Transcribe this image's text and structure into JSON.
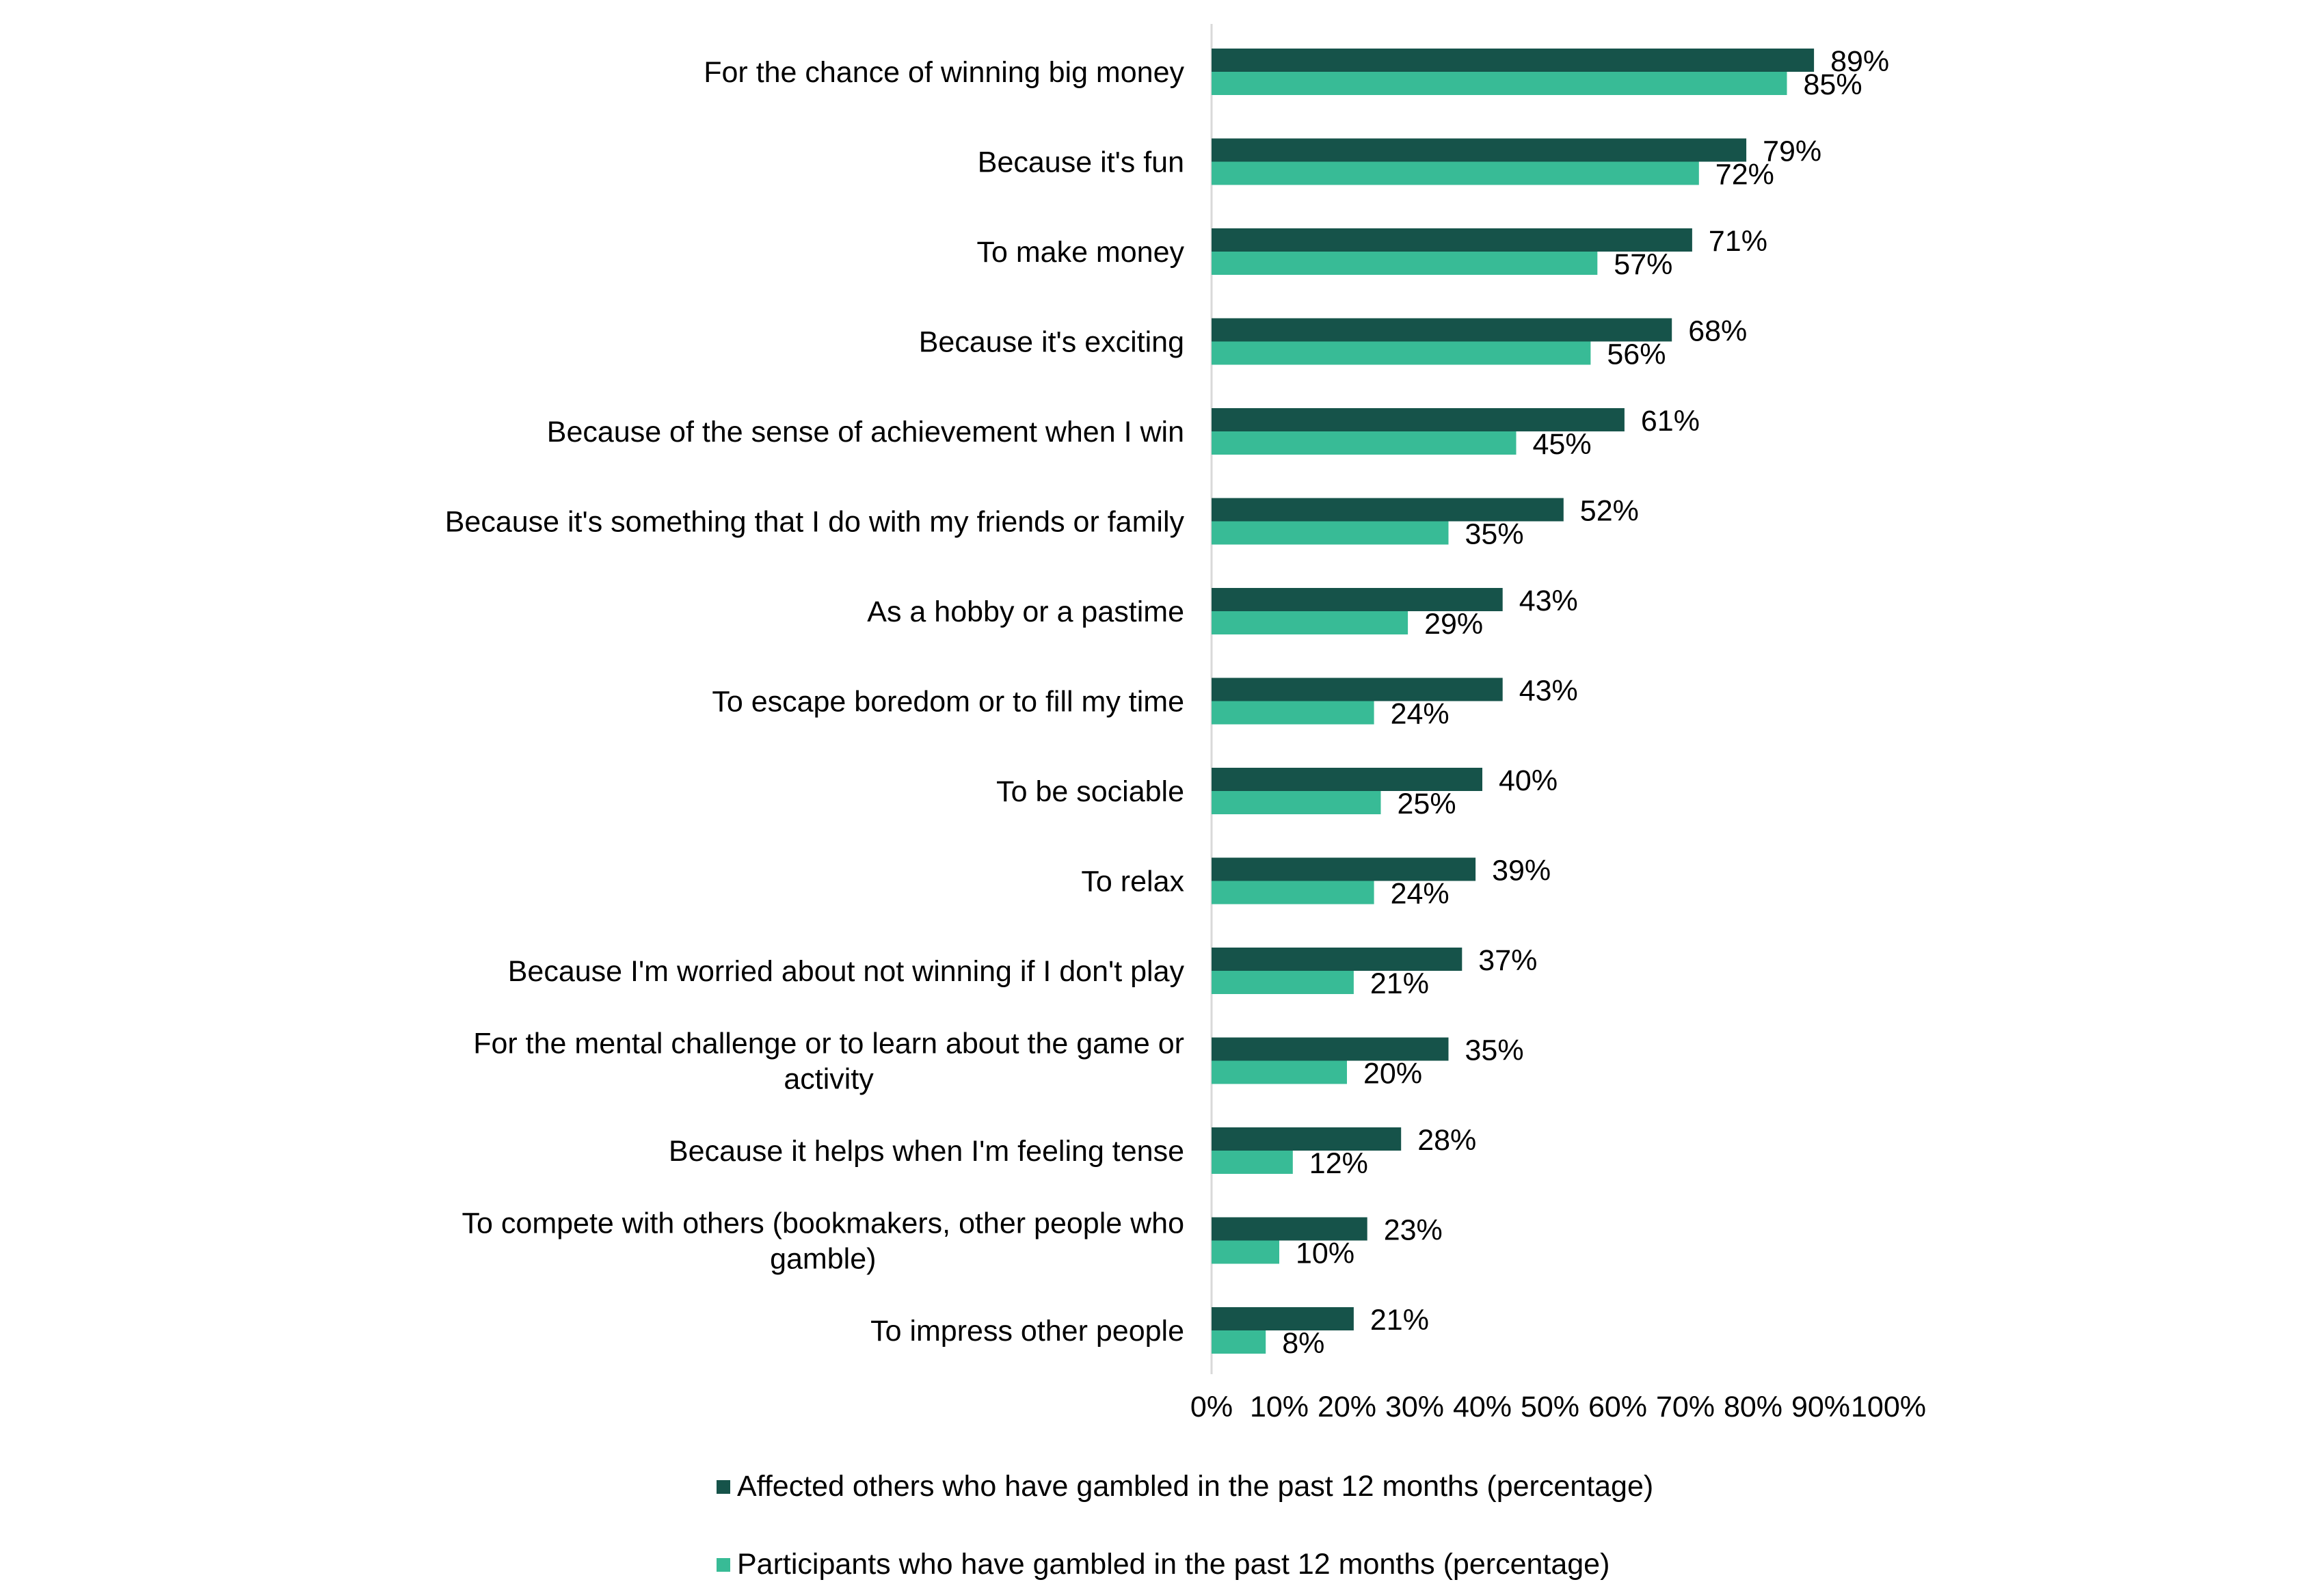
{
  "chart_data": {
    "type": "bar",
    "orientation": "horizontal",
    "categories": [
      "For the chance of winning big money",
      "Because it's fun",
      "To make money",
      "Because it's exciting",
      "Because of the sense of achievement when I win",
      "Because it's something that I do with my friends or family",
      "As a hobby or a pastime",
      "To escape boredom or to fill my time",
      "To be sociable",
      "To relax",
      "Because I'm worried about not winning if I don't play",
      "For the mental challenge or to learn about the game or activity",
      "Because it helps when I'm feeling tense",
      "To compete with others (bookmakers, other people who gamble)",
      "To impress other people"
    ],
    "series": [
      {
        "name": "Affected others who have gambled in the past 12 months (percentage)",
        "color": "#16534a",
        "values": [
          89,
          79,
          71,
          68,
          61,
          52,
          43,
          43,
          40,
          39,
          37,
          35,
          28,
          23,
          21
        ],
        "labels": [
          "89%",
          "79%",
          "71%",
          "68%",
          "61%",
          "52%",
          "43%",
          "43%",
          "40%",
          "39%",
          "37%",
          "35%",
          "28%",
          "23%",
          "21%"
        ]
      },
      {
        "name": "Participants who have gambled in the past 12 months (percentage)",
        "color": "#38bb96",
        "values": [
          85,
          72,
          57,
          56,
          45,
          35,
          29,
          24,
          25,
          24,
          21,
          20,
          12,
          10,
          8
        ],
        "labels": [
          "85%",
          "72%",
          "57%",
          "56%",
          "45%",
          "35%",
          "29%",
          "24%",
          "25%",
          "24%",
          "21%",
          "20%",
          "12%",
          "10%",
          "8%"
        ]
      }
    ],
    "xlim": [
      0,
      100
    ],
    "xticks": [
      "0%",
      "10%",
      "20%",
      "30%",
      "40%",
      "50%",
      "60%",
      "70%",
      "80%",
      "90%",
      "100%"
    ],
    "grid": false,
    "legend_position": "bottom"
  }
}
